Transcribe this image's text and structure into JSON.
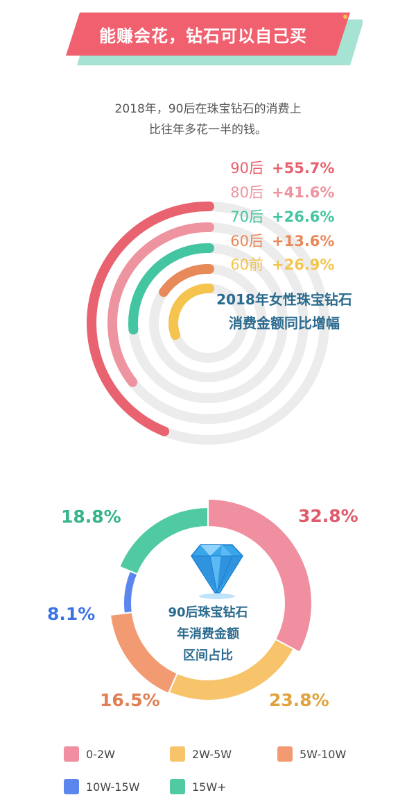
{
  "header": {
    "title": "能赚会花，钻石可以自己买",
    "colors": {
      "main": "#f0606f",
      "shadow": "#a6e3d3"
    }
  },
  "intro": {
    "line1": "2018年，90后在珠宝钻石的消费上",
    "line2": "比往年多花一半的钱。"
  },
  "chart_data": [
    {
      "type": "radial_bar",
      "title": "2018年女性珠宝钻石消费金额同比增幅",
      "title_lines": [
        "2018年女性珠宝钻石",
        "消费金额同比增幅"
      ],
      "unit": "%",
      "series": [
        {
          "name": "90后",
          "value": 55.7,
          "label": "+55.7%",
          "color": "#e8626f"
        },
        {
          "name": "80后",
          "value": 41.6,
          "label": "+41.6%",
          "color": "#ee94a1"
        },
        {
          "name": "70后",
          "value": 26.6,
          "label": "+26.6%",
          "color": "#43c5a1"
        },
        {
          "name": "60后",
          "value": 13.6,
          "label": "+13.6%",
          "color": "#e8895a"
        },
        {
          "name": "60前",
          "value": 26.9,
          "label": "+26.9%",
          "color": "#f4c44f"
        }
      ]
    },
    {
      "type": "pie",
      "title": "90后珠宝钻石年消费金额区间占比",
      "title_lines": [
        "90后珠宝钻石",
        "年消费金额",
        "区间占比"
      ],
      "slices": [
        {
          "name": "0-2W",
          "value": 32.8,
          "label": "32.8%",
          "color": "#ef8fa0",
          "label_color": "#e05a6c"
        },
        {
          "name": "2W-5W",
          "value": 23.8,
          "label": "23.8%",
          "color": "#f7c46b",
          "label_color": "#e0a23c"
        },
        {
          "name": "5W-10W",
          "value": 16.5,
          "label": "16.5%",
          "color": "#f29b73",
          "label_color": "#e07e54"
        },
        {
          "name": "10W-15W",
          "value": 8.1,
          "label": "8.1%",
          "color": "#5b86ee",
          "label_color": "#3d73e6"
        },
        {
          "name": "15W+",
          "value": 18.8,
          "label": "18.8%",
          "color": "#4fcaa3",
          "label_color": "#36b48a"
        }
      ],
      "legend_placement": "bottom"
    }
  ]
}
